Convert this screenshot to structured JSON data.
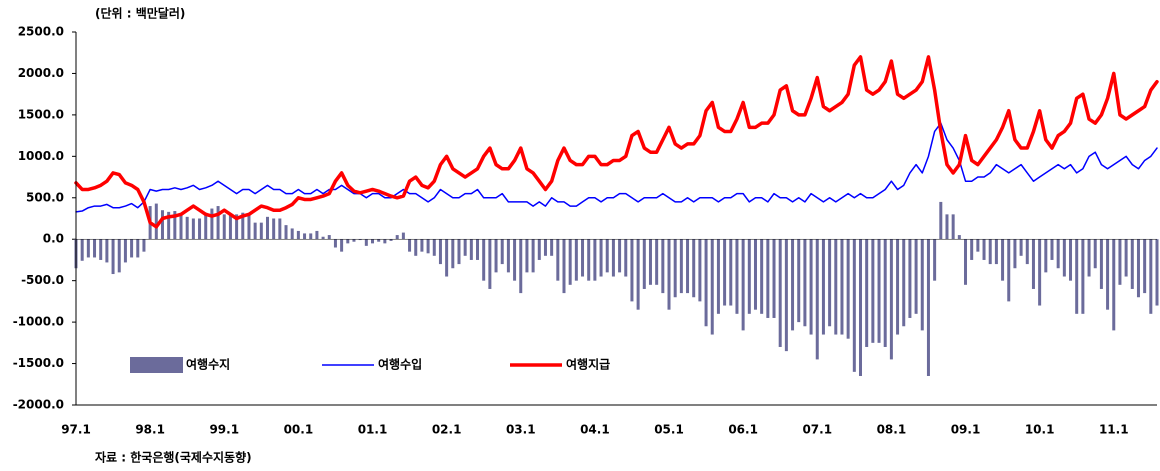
{
  "chart_data": {
    "type": "bar-line",
    "unit_note": "(단위 : 백만달러)",
    "source": "자료 : 한국은행(국제수지동향)",
    "categories": [
      "97.1",
      null,
      null,
      null,
      null,
      null,
      null,
      null,
      null,
      null,
      null,
      null,
      "98.1",
      null,
      null,
      null,
      null,
      null,
      null,
      null,
      null,
      null,
      null,
      null,
      "99.1",
      null,
      null,
      null,
      null,
      null,
      null,
      null,
      null,
      null,
      null,
      null,
      "00.1",
      null,
      null,
      null,
      null,
      null,
      null,
      null,
      null,
      null,
      null,
      null,
      "01.1",
      null,
      null,
      null,
      null,
      null,
      null,
      null,
      null,
      null,
      null,
      null,
      "02.1",
      null,
      null,
      null,
      null,
      null,
      null,
      null,
      null,
      null,
      null,
      null,
      "03.1",
      null,
      null,
      null,
      null,
      null,
      null,
      null,
      null,
      null,
      null,
      null,
      "04.1",
      null,
      null,
      null,
      null,
      null,
      null,
      null,
      null,
      null,
      null,
      null,
      "05.1",
      null,
      null,
      null,
      null,
      null,
      null,
      null,
      null,
      null,
      null,
      null,
      "06.1",
      null,
      null,
      null,
      null,
      null,
      null,
      null,
      null,
      null,
      null,
      null,
      "07.1",
      null,
      null,
      null,
      null,
      null,
      null,
      null,
      null,
      null,
      null,
      null,
      "08.1",
      null,
      null,
      null,
      null,
      null,
      null,
      null,
      null,
      null,
      null,
      null,
      "09.1",
      null,
      null,
      null,
      null,
      null,
      null,
      null,
      null,
      null,
      null,
      null,
      "10.1",
      null,
      null,
      null,
      null,
      null,
      null,
      null,
      null,
      null,
      null,
      null,
      "11.1",
      null,
      null,
      null,
      null,
      null,
      null,
      null
    ],
    "ylim": [
      -2000,
      2500
    ],
    "yticks": [
      {
        "value": 2500,
        "label": "2500.0"
      },
      {
        "value": 2000,
        "label": "2000.0"
      },
      {
        "value": 1500,
        "label": "1500.0"
      },
      {
        "value": 1000,
        "label": "1000.0"
      },
      {
        "value": 500,
        "label": "500.0"
      },
      {
        "value": 0,
        "label": "0.0"
      },
      {
        "value": -500,
        "label": "-500.0"
      },
      {
        "value": -1000,
        "label": "-1000.0"
      },
      {
        "value": -1500,
        "label": "-1500.0"
      },
      {
        "value": -2000,
        "label": "-2000.0"
      }
    ],
    "series": [
      {
        "name": "여행수지",
        "type": "bar",
        "color": "#6b6b9b",
        "values": [
          -350,
          -260,
          -220,
          -220,
          -250,
          -280,
          -420,
          -400,
          -280,
          -220,
          -220,
          -150,
          400,
          430,
          350,
          330,
          340,
          300,
          270,
          250,
          250,
          320,
          370,
          400,
          300,
          300,
          300,
          320,
          300,
          200,
          200,
          270,
          250,
          250,
          170,
          130,
          100,
          70,
          70,
          100,
          30,
          50,
          -100,
          -150,
          -50,
          -30,
          -10,
          -80,
          -50,
          -30,
          -50,
          -20,
          50,
          80,
          -150,
          -200,
          -150,
          -170,
          -200,
          -300,
          -450,
          -350,
          -300,
          -200,
          -250,
          -250,
          -500,
          -600,
          -400,
          -300,
          -400,
          -500,
          -650,
          -400,
          -400,
          -250,
          -200,
          -200,
          -500,
          -650,
          -550,
          -500,
          -450,
          -500,
          -500,
          -450,
          -400,
          -450,
          -400,
          -450,
          -750,
          -850,
          -600,
          -550,
          -550,
          -650,
          -850,
          -700,
          -650,
          -650,
          -700,
          -750,
          -1050,
          -1150,
          -900,
          -800,
          -800,
          -900,
          -1100,
          -900,
          -850,
          -900,
          -950,
          -950,
          -1300,
          -1350,
          -1100,
          -1000,
          -1050,
          -1150,
          -1450,
          -1150,
          -1050,
          -1150,
          -1150,
          -1200,
          -1600,
          -1650,
          -1300,
          -1250,
          -1250,
          -1300,
          -1450,
          -1150,
          -1050,
          -950,
          -900,
          -1100,
          -1650,
          -500,
          450,
          300,
          300,
          50,
          -550,
          -250,
          -150,
          -250,
          -300,
          -300,
          -500,
          -750,
          -350,
          -200,
          -300,
          -600,
          -800,
          -400,
          -250,
          -350,
          -450,
          -500,
          -900,
          -900,
          -450,
          -350,
          -600,
          -850,
          -1100,
          -550,
          -450,
          -600,
          -700,
          -650,
          -900,
          -800
        ]
      },
      {
        "name": "여행수입",
        "type": "line",
        "color": "#0000ff",
        "width": 1.5,
        "values": [
          330,
          340,
          380,
          400,
          400,
          420,
          380,
          380,
          400,
          430,
          380,
          450,
          600,
          580,
          600,
          600,
          620,
          600,
          620,
          650,
          600,
          620,
          650,
          700,
          650,
          600,
          550,
          600,
          600,
          550,
          600,
          650,
          600,
          600,
          550,
          550,
          600,
          550,
          550,
          600,
          550,
          600,
          600,
          650,
          600,
          550,
          550,
          500,
          550,
          550,
          500,
          500,
          550,
          600,
          550,
          550,
          500,
          450,
          500,
          600,
          550,
          500,
          500,
          550,
          550,
          600,
          500,
          500,
          500,
          550,
          450,
          450,
          450,
          450,
          400,
          450,
          400,
          500,
          450,
          450,
          400,
          400,
          450,
          500,
          500,
          450,
          500,
          500,
          550,
          550,
          500,
          450,
          500,
          500,
          500,
          550,
          500,
          450,
          450,
          500,
          450,
          500,
          500,
          500,
          450,
          500,
          500,
          550,
          550,
          450,
          500,
          500,
          450,
          550,
          500,
          500,
          450,
          500,
          450,
          550,
          500,
          450,
          500,
          450,
          500,
          550,
          500,
          550,
          500,
          500,
          550,
          600,
          700,
          600,
          650,
          800,
          900,
          800,
          1000,
          1300,
          1400,
          1200,
          1100,
          950,
          700,
          700,
          750,
          750,
          800,
          900,
          850,
          800,
          850,
          900,
          800,
          700,
          750,
          800,
          850,
          900,
          850,
          900,
          800,
          850,
          1000,
          1050,
          900,
          850,
          900,
          950,
          1000,
          900,
          850,
          950,
          1000,
          1100
        ]
      },
      {
        "name": "여행지급",
        "type": "line",
        "color": "#ff0000",
        "width": 3.5,
        "values": [
          680,
          600,
          600,
          620,
          650,
          700,
          800,
          780,
          680,
          650,
          600,
          450,
          200,
          150,
          250,
          270,
          280,
          300,
          350,
          400,
          350,
          300,
          280,
          300,
          350,
          300,
          250,
          280,
          300,
          350,
          400,
          380,
          350,
          350,
          380,
          420,
          500,
          480,
          480,
          500,
          520,
          550,
          700,
          800,
          650,
          580,
          560,
          580,
          600,
          580,
          550,
          520,
          500,
          520,
          700,
          750,
          650,
          620,
          700,
          900,
          1000,
          850,
          800,
          750,
          800,
          850,
          1000,
          1100,
          900,
          850,
          850,
          950,
          1100,
          850,
          800,
          700,
          600,
          700,
          950,
          1100,
          950,
          900,
          900,
          1000,
          1000,
          900,
          900,
          950,
          950,
          1000,
          1250,
          1300,
          1100,
          1050,
          1050,
          1200,
          1350,
          1150,
          1100,
          1150,
          1150,
          1250,
          1550,
          1650,
          1350,
          1300,
          1300,
          1450,
          1650,
          1350,
          1350,
          1400,
          1400,
          1500,
          1800,
          1850,
          1550,
          1500,
          1500,
          1700,
          1950,
          1600,
          1550,
          1600,
          1650,
          1750,
          2100,
          2200,
          1800,
          1750,
          1800,
          1900,
          2150,
          1750,
          1700,
          1750,
          1800,
          1900,
          2200,
          1800,
          1300,
          900,
          800,
          900,
          1250,
          950,
          900,
          1000,
          1100,
          1200,
          1350,
          1550,
          1200,
          1100,
          1100,
          1300,
          1550,
          1200,
          1100,
          1250,
          1300,
          1400,
          1700,
          1750,
          1450,
          1400,
          1500,
          1700,
          2000,
          1500,
          1450,
          1500,
          1550,
          1600,
          1800,
          1900
        ]
      }
    ]
  }
}
